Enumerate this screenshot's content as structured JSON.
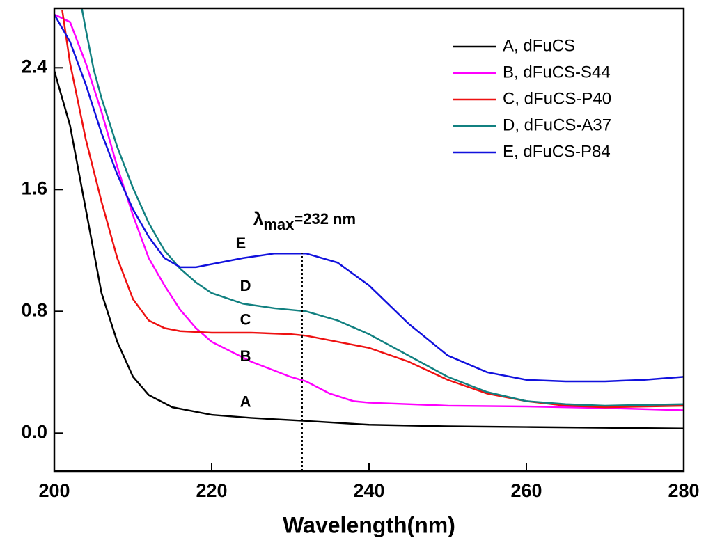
{
  "chart_data": {
    "type": "line",
    "x_label": "Wavelength(nm)",
    "xlim": [
      200,
      280
    ],
    "xticks": [
      200,
      220,
      240,
      260,
      280
    ],
    "ylim": [
      -0.25,
      2.79
    ],
    "yticks": [
      {
        "value": 0,
        "label": "0.0"
      },
      0.8,
      1.6,
      2.4
    ],
    "legend": "upper right",
    "series": [
      {
        "name": "A, dFuCS",
        "color": "#000000",
        "x": [
          200,
          202,
          204,
          206,
          208,
          210,
          212,
          215,
          220,
          225,
          232,
          240,
          250,
          260,
          270,
          280
        ],
        "values": [
          2.38,
          2.02,
          1.47,
          0.92,
          0.6,
          0.37,
          0.25,
          0.17,
          0.12,
          0.1,
          0.08,
          0.055,
          0.045,
          0.04,
          0.035,
          0.03
        ]
      },
      {
        "name": "B, dFuCS-S44",
        "color": "#ff00ff",
        "x": [
          200,
          202,
          204,
          206,
          208,
          210,
          212,
          214,
          216,
          218,
          220,
          225,
          230,
          232,
          235,
          238,
          240,
          250,
          260,
          270,
          280
        ],
        "values": [
          2.75,
          2.7,
          2.43,
          2.11,
          1.75,
          1.43,
          1.15,
          0.97,
          0.81,
          0.69,
          0.6,
          0.47,
          0.37,
          0.34,
          0.26,
          0.21,
          0.2,
          0.18,
          0.175,
          0.165,
          0.15
        ]
      },
      {
        "name": "C, dFuCS-P40",
        "color": "#ee1111",
        "x": [
          201,
          202,
          204,
          206,
          208,
          210,
          212,
          214,
          216,
          220,
          225,
          230,
          232,
          236,
          240,
          245,
          250,
          255,
          260,
          265,
          270,
          280
        ],
        "values": [
          2.78,
          2.43,
          1.93,
          1.52,
          1.15,
          0.88,
          0.74,
          0.69,
          0.67,
          0.66,
          0.66,
          0.65,
          0.64,
          0.6,
          0.56,
          0.47,
          0.35,
          0.26,
          0.21,
          0.18,
          0.17,
          0.18
        ]
      },
      {
        "name": "D, dFuCS-A37",
        "color": "#118080",
        "x": [
          203.5,
          204,
          205,
          206,
          208,
          210,
          212,
          214,
          216,
          218,
          220,
          224,
          228,
          232,
          236,
          240,
          245,
          250,
          255,
          260,
          265,
          270,
          280
        ],
        "values": [
          2.79,
          2.65,
          2.39,
          2.2,
          1.88,
          1.61,
          1.38,
          1.2,
          1.08,
          0.99,
          0.92,
          0.85,
          0.82,
          0.8,
          0.74,
          0.65,
          0.51,
          0.37,
          0.27,
          0.21,
          0.19,
          0.18,
          0.19
        ]
      },
      {
        "name": "E, dFuCS-P84",
        "color": "#1111dd",
        "x": [
          200,
          202,
          204,
          206,
          208,
          210,
          212,
          214,
          216,
          218,
          220,
          224,
          228,
          232,
          236,
          240,
          245,
          250,
          255,
          260,
          265,
          270,
          275,
          280
        ],
        "values": [
          2.75,
          2.57,
          2.29,
          1.97,
          1.7,
          1.47,
          1.29,
          1.15,
          1.09,
          1.09,
          1.11,
          1.15,
          1.18,
          1.18,
          1.12,
          0.97,
          0.72,
          0.51,
          0.4,
          0.35,
          0.34,
          0.34,
          0.35,
          0.37
        ]
      }
    ],
    "annotations": [
      {
        "text": "A",
        "x": 224.3,
        "y": 0.2
      },
      {
        "text": "B",
        "x": 224.3,
        "y": 0.5
      },
      {
        "text": "C",
        "x": 224.3,
        "y": 0.74
      },
      {
        "text": "D",
        "x": 224.3,
        "y": 0.96
      },
      {
        "text": "E",
        "x": 223.7,
        "y": 1.24
      }
    ],
    "peak": {
      "symbol": "λ",
      "subscript": "max",
      "text": "=232 nm",
      "x": 231.5,
      "y": 1.18,
      "label_x": 225.3,
      "label_y": 1.4
    }
  }
}
